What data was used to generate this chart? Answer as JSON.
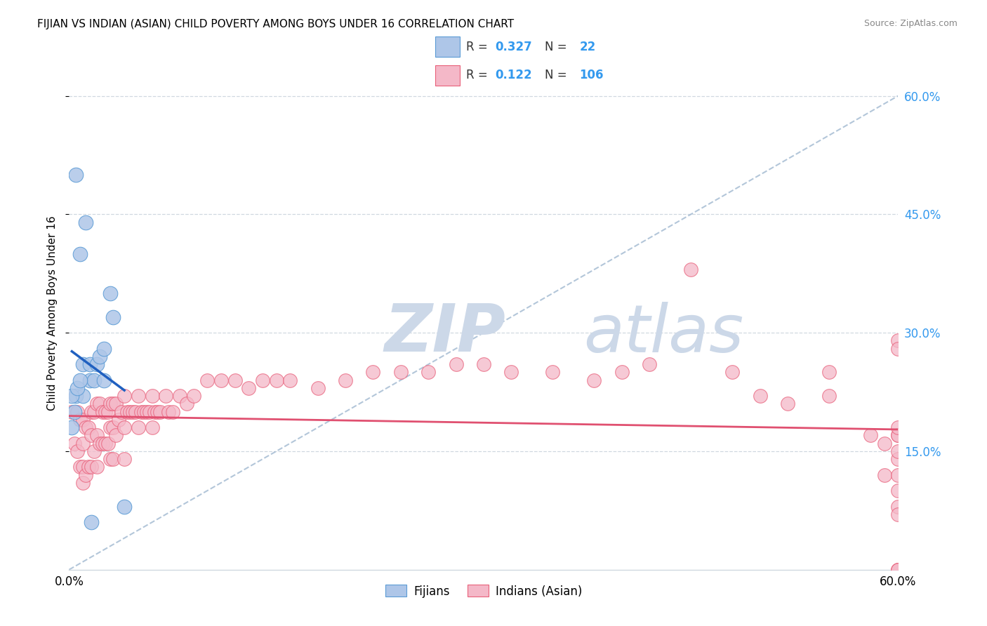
{
  "title": "FIJIAN VS INDIAN (ASIAN) CHILD POVERTY AMONG BOYS UNDER 16 CORRELATION CHART",
  "source": "Source: ZipAtlas.com",
  "ylabel": "Child Poverty Among Boys Under 16",
  "xlim": [
    0.0,
    0.6
  ],
  "ylim": [
    0.0,
    0.65
  ],
  "fijian_color": "#aec6e8",
  "fijian_edge_color": "#5b9bd5",
  "indian_color": "#f4b8c8",
  "indian_edge_color": "#e8607a",
  "fijian_line_color": "#2060c0",
  "indian_line_color": "#e05070",
  "diag_color": "#a0b8d0",
  "watermark_color": "#ccd8e8",
  "fijian_x": [
    0.002,
    0.005,
    0.005,
    0.008,
    0.01,
    0.01,
    0.012,
    0.015,
    0.015,
    0.018,
    0.02,
    0.022,
    0.025,
    0.025,
    0.03,
    0.032,
    0.002,
    0.004,
    0.006,
    0.008,
    0.016,
    0.04
  ],
  "fijian_y": [
    0.18,
    0.5,
    0.22,
    0.4,
    0.26,
    0.22,
    0.44,
    0.26,
    0.24,
    0.24,
    0.26,
    0.27,
    0.28,
    0.24,
    0.35,
    0.32,
    0.22,
    0.2,
    0.23,
    0.24,
    0.06,
    0.08
  ],
  "indian_x": [
    0.002,
    0.004,
    0.006,
    0.006,
    0.008,
    0.008,
    0.01,
    0.01,
    0.01,
    0.01,
    0.012,
    0.012,
    0.014,
    0.014,
    0.016,
    0.016,
    0.016,
    0.018,
    0.018,
    0.02,
    0.02,
    0.02,
    0.022,
    0.022,
    0.024,
    0.024,
    0.026,
    0.026,
    0.028,
    0.028,
    0.03,
    0.03,
    0.03,
    0.032,
    0.032,
    0.032,
    0.034,
    0.034,
    0.036,
    0.038,
    0.04,
    0.04,
    0.04,
    0.042,
    0.044,
    0.046,
    0.048,
    0.05,
    0.05,
    0.052,
    0.054,
    0.056,
    0.058,
    0.06,
    0.06,
    0.062,
    0.064,
    0.066,
    0.07,
    0.072,
    0.075,
    0.08,
    0.085,
    0.09,
    0.1,
    0.11,
    0.12,
    0.13,
    0.14,
    0.15,
    0.16,
    0.18,
    0.2,
    0.22,
    0.24,
    0.26,
    0.28,
    0.3,
    0.32,
    0.35,
    0.38,
    0.4,
    0.42,
    0.45,
    0.48,
    0.5,
    0.52,
    0.55,
    0.55,
    0.58,
    0.59,
    0.59,
    0.6,
    0.6,
    0.6,
    0.6,
    0.6,
    0.6,
    0.6,
    0.6,
    0.6,
    0.6,
    0.6,
    0.6,
    0.6,
    0.6
  ],
  "indian_y": [
    0.2,
    0.16,
    0.2,
    0.15,
    0.19,
    0.13,
    0.19,
    0.16,
    0.13,
    0.11,
    0.18,
    0.12,
    0.18,
    0.13,
    0.2,
    0.17,
    0.13,
    0.2,
    0.15,
    0.21,
    0.17,
    0.13,
    0.21,
    0.16,
    0.2,
    0.16,
    0.2,
    0.16,
    0.2,
    0.16,
    0.21,
    0.18,
    0.14,
    0.21,
    0.18,
    0.14,
    0.21,
    0.17,
    0.19,
    0.2,
    0.22,
    0.18,
    0.14,
    0.2,
    0.2,
    0.2,
    0.2,
    0.22,
    0.18,
    0.2,
    0.2,
    0.2,
    0.2,
    0.22,
    0.18,
    0.2,
    0.2,
    0.2,
    0.22,
    0.2,
    0.2,
    0.22,
    0.21,
    0.22,
    0.24,
    0.24,
    0.24,
    0.23,
    0.24,
    0.24,
    0.24,
    0.23,
    0.24,
    0.25,
    0.25,
    0.25,
    0.26,
    0.26,
    0.25,
    0.25,
    0.24,
    0.25,
    0.26,
    0.38,
    0.25,
    0.22,
    0.21,
    0.22,
    0.25,
    0.17,
    0.12,
    0.16,
    0.0,
    0.17,
    0.0,
    0.29,
    0.14,
    0.1,
    0.08,
    0.15,
    0.28,
    0.17,
    0.12,
    0.07,
    0.0,
    0.18
  ]
}
